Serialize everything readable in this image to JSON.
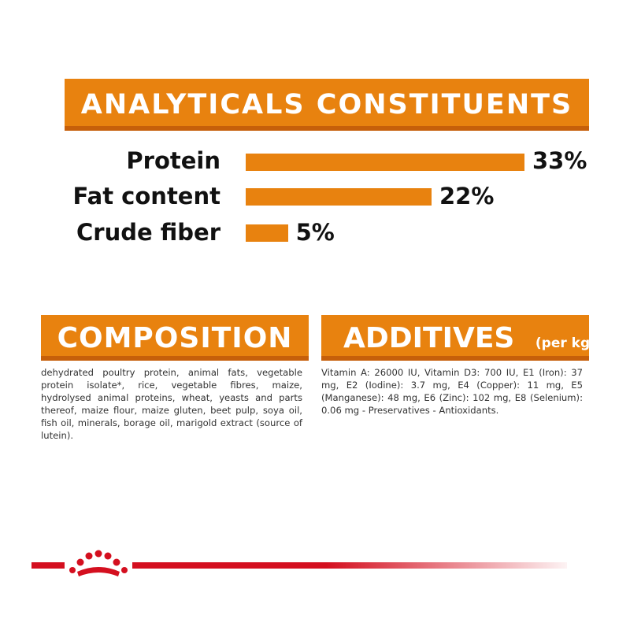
{
  "header": {
    "title": "ANALYTICALS CONSTITUENTS"
  },
  "analyticals": [
    {
      "label": "Protein",
      "value": 33,
      "display": "33%"
    },
    {
      "label": "Fat content",
      "value": 22,
      "display": "22%"
    },
    {
      "label": "Crude fiber",
      "value": 5,
      "display": "5%"
    }
  ],
  "composition": {
    "title": "COMPOSITION",
    "text": "dehydrated poultry protein, animal fats, vegetable protein isolate*, rice, vegetable fibres, maize, hydrolysed animal proteins, wheat, yeasts and parts thereof, maize flour, maize gluten, beet pulp, soya oil, fish oil, minerals, borage oil, marigold extract (source of lutein)."
  },
  "additives": {
    "title": "ADDITIVES",
    "subtitle": "(per kg)",
    "text": "Vitamin A: 26000 IU, Vitamin D3: 700 IU, E1 (Iron): 37 mg, E2 (Iodine): 3.7 mg, E4 (Copper): 11 mg, E5 (Manganese): 48 mg, E6 (Zinc): 102 mg, E8 (Selenium): 0.06 mg - Preservatives - Antioxidants."
  },
  "colors": {
    "accent": "#e8820f",
    "accent_dark": "#c65f0a",
    "brand_red": "#d40f1f"
  },
  "footer": {
    "logo_icon": "royal-canin-crown-icon"
  }
}
